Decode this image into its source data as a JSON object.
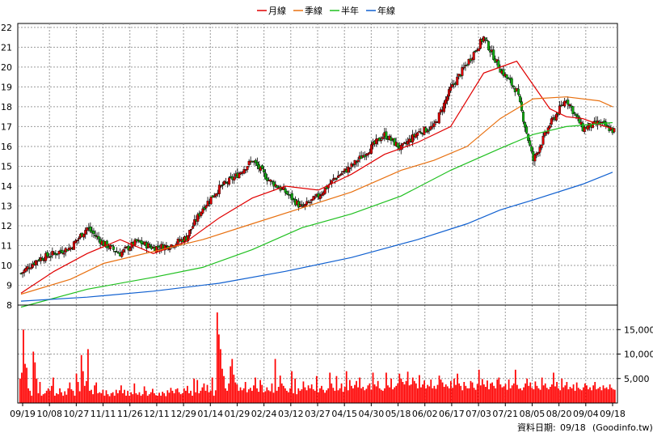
{
  "legend": [
    {
      "label": "月線",
      "color": "#e00000"
    },
    {
      "label": "季線",
      "color": "#e87010"
    },
    {
      "label": "半年",
      "color": "#20c020"
    },
    {
      "label": "年線",
      "color": "#1060d0"
    }
  ],
  "footer": {
    "date_label": "資料日期:",
    "date_value": "09/18",
    "source": "(Goodinfo.tw)"
  },
  "colors": {
    "up": "#e00000",
    "down": "#10b010",
    "volume": "#ff0000",
    "frame": "#000000"
  },
  "chart_data": [
    {
      "type": "candlestick",
      "title": "",
      "y_ticks": [
        8,
        9,
        10,
        11,
        12,
        13,
        14,
        15,
        16,
        17,
        18,
        19,
        20,
        21,
        22
      ],
      "ylim": [
        8,
        22.2
      ],
      "x_ticks": [
        "09/19",
        "10/08",
        "10/27",
        "11/11",
        "11/26",
        "12/11",
        "12/29",
        "01/14",
        "01/29",
        "02/24",
        "03/12",
        "03/27",
        "04/15",
        "04/30",
        "05/18",
        "06/02",
        "06/17",
        "07/03",
        "07/21",
        "08/05",
        "08/20",
        "09/04",
        "09/18"
      ],
      "grid": true,
      "sample_closes": [
        [
          0,
          9.6
        ],
        [
          10,
          10.3
        ],
        [
          20,
          10.6
        ],
        [
          30,
          10.9
        ],
        [
          40,
          11.9
        ],
        [
          50,
          11.1
        ],
        [
          60,
          10.6
        ],
        [
          70,
          11.2
        ],
        [
          80,
          10.9
        ],
        [
          90,
          11.0
        ],
        [
          100,
          11.4
        ],
        [
          110,
          12.9
        ],
        [
          120,
          13.9
        ],
        [
          130,
          14.5
        ],
        [
          140,
          15.3
        ],
        [
          150,
          14.3
        ],
        [
          160,
          13.7
        ],
        [
          170,
          12.9
        ],
        [
          180,
          13.5
        ],
        [
          190,
          14.4
        ],
        [
          200,
          15.0
        ],
        [
          210,
          15.8
        ],
        [
          220,
          16.6
        ],
        [
          230,
          15.9
        ],
        [
          240,
          16.7
        ],
        [
          250,
          17.0
        ],
        [
          260,
          18.9
        ],
        [
          270,
          20.2
        ],
        [
          280,
          21.5
        ],
        [
          290,
          19.9
        ],
        [
          300,
          18.8
        ],
        [
          310,
          15.3
        ],
        [
          320,
          17.1
        ],
        [
          330,
          18.4
        ],
        [
          340,
          16.9
        ],
        [
          350,
          17.2
        ],
        [
          358,
          16.8
        ]
      ],
      "series": [
        {
          "name": "月線",
          "points": [
            [
              0,
              8.6
            ],
            [
              20,
              9.7
            ],
            [
              40,
              10.6
            ],
            [
              60,
              11.3
            ],
            [
              80,
              10.6
            ],
            [
              100,
              11.2
            ],
            [
              120,
              12.4
            ],
            [
              140,
              13.4
            ],
            [
              160,
              14.0
            ],
            [
              180,
              13.8
            ],
            [
              200,
              14.6
            ],
            [
              220,
              15.6
            ],
            [
              240,
              16.2
            ],
            [
              260,
              17.0
            ],
            [
              280,
              19.7
            ],
            [
              300,
              20.3
            ],
            [
              310,
              19.1
            ],
            [
              320,
              17.9
            ],
            [
              330,
              17.5
            ],
            [
              340,
              17.4
            ],
            [
              350,
              17.1
            ],
            [
              358,
              16.9
            ]
          ]
        },
        {
          "name": "季線",
          "points": [
            [
              0,
              8.55
            ],
            [
              30,
              9.3
            ],
            [
              50,
              10.1
            ],
            [
              80,
              10.7
            ],
            [
              110,
              11.3
            ],
            [
              140,
              12.1
            ],
            [
              170,
              12.9
            ],
            [
              200,
              13.7
            ],
            [
              230,
              14.8
            ],
            [
              250,
              15.3
            ],
            [
              270,
              16.0
            ],
            [
              290,
              17.4
            ],
            [
              310,
              18.4
            ],
            [
              330,
              18.5
            ],
            [
              350,
              18.3
            ],
            [
              358,
              18.0
            ]
          ]
        },
        {
          "name": "半年",
          "points": [
            [
              0,
              7.9
            ],
            [
              40,
              8.8
            ],
            [
              80,
              9.4
            ],
            [
              110,
              9.9
            ],
            [
              140,
              10.8
            ],
            [
              170,
              11.9
            ],
            [
              200,
              12.6
            ],
            [
              230,
              13.5
            ],
            [
              260,
              14.8
            ],
            [
              290,
              15.9
            ],
            [
              310,
              16.6
            ],
            [
              330,
              17.0
            ],
            [
              358,
              17.2
            ]
          ]
        },
        {
          "name": "年線",
          "points": [
            [
              0,
              8.2
            ],
            [
              40,
              8.4
            ],
            [
              80,
              8.7
            ],
            [
              120,
              9.1
            ],
            [
              160,
              9.7
            ],
            [
              200,
              10.4
            ],
            [
              240,
              11.3
            ],
            [
              270,
              12.1
            ],
            [
              290,
              12.8
            ],
            [
              310,
              13.3
            ],
            [
              340,
              14.1
            ],
            [
              358,
              14.7
            ]
          ]
        }
      ]
    },
    {
      "type": "bar",
      "title": "",
      "y_ticks": [
        "5,000",
        "10,000",
        "15,000"
      ],
      "ylim": [
        0,
        20000
      ],
      "values": [
        5000,
        6200,
        15000,
        8000,
        7200,
        3000,
        2500,
        1500,
        10500,
        8300,
        5000,
        2000,
        4300,
        1500,
        1800,
        2000,
        2500,
        3000,
        2500,
        3500,
        5200,
        1500,
        2000,
        1800,
        3000,
        2200,
        1500,
        2400,
        1700,
        3000,
        4200,
        2800,
        2500,
        1500,
        6000,
        4300,
        2400,
        9800,
        6500,
        3500,
        4500,
        11000,
        2500,
        2700,
        1800,
        3600,
        4200,
        2000,
        2200,
        2000,
        2700,
        1500,
        2600,
        1800,
        1400,
        2000,
        2200,
        1500,
        2700,
        2000,
        2600,
        3600,
        2000,
        2700,
        1500,
        2500,
        1500,
        2200,
        1800,
        4000,
        2000,
        1700,
        2200,
        1500,
        1800,
        3400,
        2500,
        1500,
        1800,
        2200,
        2900,
        2000,
        1600,
        1500,
        2100,
        1500,
        2300,
        2000,
        1400,
        2600,
        2100,
        3100,
        2500,
        2000,
        2800,
        3000,
        2200,
        1800,
        2000,
        3000,
        2500,
        3500,
        2000,
        2500,
        1500,
        5000,
        2200,
        4700,
        2000,
        2500,
        3200,
        4000,
        2500,
        3700,
        2200,
        2500,
        5200,
        1500,
        2600,
        18500,
        14000,
        11000,
        7000,
        5500,
        3000,
        2500,
        4000,
        7500,
        9000,
        5800,
        4200,
        3800,
        2500,
        3200,
        2600,
        3000,
        4300,
        2200,
        2800,
        3100,
        2500,
        3600,
        5200,
        3000,
        2300,
        4700,
        3700,
        2200,
        2400,
        3200,
        2600,
        2400,
        4000,
        2100,
        9000,
        2500,
        3300,
        5600,
        4000,
        3500,
        3000,
        2500,
        2200,
        3000,
        6500,
        2000,
        5000,
        1800,
        3000,
        2500,
        2800,
        4400,
        3200,
        2600,
        3600,
        3000,
        3800,
        2800,
        2500,
        5500,
        2200,
        3000,
        3500,
        2700,
        2100,
        2600,
        3000,
        6200,
        4000,
        3100,
        2500,
        5500,
        2600,
        3000,
        4000,
        2300,
        3300,
        6500,
        2600,
        4700,
        3500,
        3000,
        3700,
        4500,
        3200,
        5200,
        3000,
        3300,
        2600,
        2900,
        3600,
        4000,
        2700,
        6200,
        3800,
        3400,
        4500,
        3000,
        2700,
        2500,
        3000,
        6200,
        3600,
        3200,
        5000,
        2800,
        3200,
        3500,
        4000,
        6000,
        5000,
        4300,
        3800,
        4500,
        6400,
        3600,
        3800,
        5200,
        4500,
        4000,
        3000,
        5700,
        3200,
        3800,
        4600,
        3000,
        3700,
        3400,
        4800,
        3000,
        3500,
        2900,
        3700,
        5600,
        4800,
        4200,
        3300,
        3800,
        3400,
        3000,
        4500,
        3100,
        5000,
        3700,
        6000,
        4000,
        3500,
        2600,
        4300,
        3500,
        3000,
        3000,
        4500,
        4200,
        3100,
        2700,
        3900,
        6800,
        3600,
        4900,
        3800,
        3300,
        4600,
        2800,
        4000,
        4200,
        3500,
        3000,
        4800,
        5200,
        3800,
        3200,
        3400,
        3900,
        2700,
        4800,
        3000,
        3600,
        4000,
        6800,
        3700,
        2900,
        3000,
        2600,
        3200,
        4000,
        5000,
        3500,
        4200,
        3100,
        2800,
        4400,
        3500,
        3000,
        2700,
        5200,
        3600,
        4000,
        3100,
        2800,
        3300,
        3800,
        6200,
        3400,
        4300,
        3000,
        2600,
        5000,
        3200,
        3600,
        4300,
        2800,
        3300,
        3000,
        3800,
        2500,
        4200,
        3100,
        2800,
        2600,
        3200,
        4000,
        3600,
        2800,
        3200,
        2600,
        3600,
        4300,
        2800,
        3000,
        3300,
        2600,
        3600,
        3000,
        3200,
        2800,
        3800,
        3100,
        2800,
        2700
      ]
    }
  ]
}
